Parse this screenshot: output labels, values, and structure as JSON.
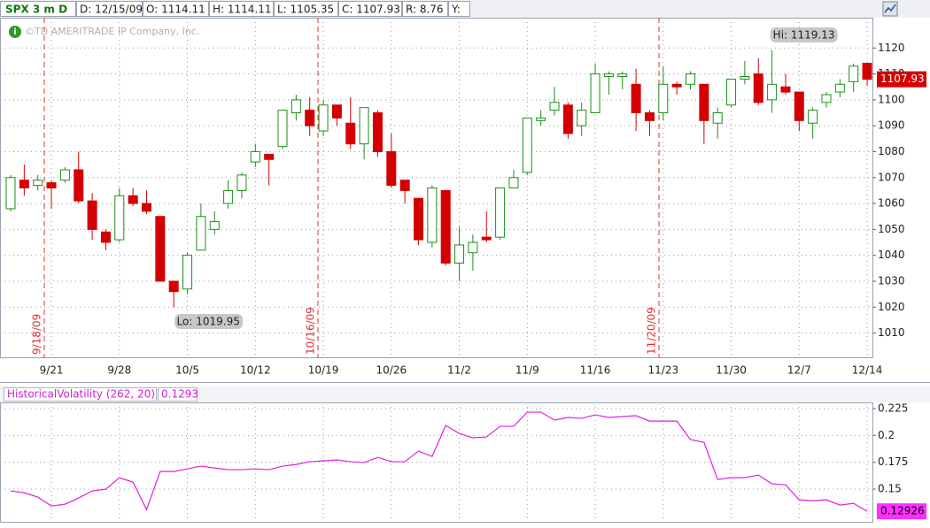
{
  "header": {
    "symbol": "SPX 3 m D",
    "fields": [
      "D: 12/15/09",
      "O: 1114.11",
      "H: 1114.11",
      "L: 1105.35",
      "C: 1107.93",
      "R: 8.76",
      "Y:"
    ],
    "watermark": "©TD AMERITRADE IP Company, Inc."
  },
  "chart_data": [
    {
      "type": "candlestick",
      "categories": [
        null,
        null,
        null,
        "9/21",
        null,
        null,
        null,
        null,
        "9/28",
        null,
        null,
        null,
        null,
        "10/5",
        null,
        null,
        null,
        null,
        "10/12",
        null,
        null,
        null,
        null,
        "10/19",
        null,
        null,
        null,
        null,
        "10/26",
        null,
        null,
        null,
        null,
        "11/2",
        null,
        null,
        null,
        null,
        "11/9",
        null,
        null,
        null,
        null,
        "11/16",
        null,
        null,
        null,
        null,
        "11/23",
        null,
        null,
        null,
        null,
        "11/30",
        null,
        null,
        null,
        null,
        "12/7",
        null,
        null,
        null,
        null,
        "12/14"
      ],
      "open": [
        1058,
        1069,
        1067,
        1068,
        1069,
        1073,
        1061,
        1049,
        1046,
        1063,
        1060,
        1055,
        1030,
        1027,
        1042,
        1050,
        1060,
        1065,
        1076,
        1079,
        1082,
        1095,
        1096,
        1088,
        1098,
        1091,
        1083,
        1095,
        1080,
        1069,
        1062,
        1045,
        1065,
        1037,
        1041,
        1047,
        1047,
        1066,
        1072,
        1092,
        1096,
        1098,
        1090,
        1095,
        1109,
        1109,
        1106,
        1095,
        1095,
        1106,
        1106,
        1106,
        1091,
        1098,
        1108,
        1110,
        1100,
        1105,
        1103,
        1091,
        1099,
        1103,
        1107,
        1114.11
      ],
      "high": [
        1071,
        1075,
        1071,
        1069,
        1074,
        1080,
        1064,
        1050,
        1066,
        1066,
        1065,
        1055,
        1030,
        1041,
        1060,
        1057,
        1069,
        1072,
        1083,
        1079,
        1096,
        1102,
        1101,
        1100,
        1098,
        1101,
        1097,
        1096,
        1087,
        1069,
        1062,
        1067,
        1065,
        1051,
        1048,
        1057,
        1066,
        1073,
        1093,
        1096,
        1105,
        1099,
        1099,
        1114,
        1111,
        1111,
        1112,
        1096,
        1113,
        1107,
        1111,
        1106,
        1097,
        1108,
        1115,
        1116,
        1119.13,
        1110,
        1103,
        1097,
        1103,
        1108,
        1114,
        1114.11
      ],
      "low": [
        1057,
        1063,
        1065,
        1058,
        1068,
        1060,
        1046,
        1042,
        1045,
        1059,
        1056,
        1030,
        1019.95,
        1025,
        1042,
        1048,
        1058,
        1062,
        1074,
        1067,
        1081,
        1092,
        1086,
        1086,
        1090,
        1081,
        1077,
        1078,
        1066,
        1060,
        1044,
        1043,
        1036,
        1030,
        1034,
        1045,
        1046,
        1066,
        1071,
        1090,
        1094,
        1085,
        1086,
        1095,
        1102,
        1104,
        1088,
        1086,
        1092,
        1102,
        1104,
        1083,
        1085,
        1097,
        1106,
        1098,
        1095,
        1102,
        1088,
        1085,
        1097,
        1101,
        1103,
        1105.35
      ],
      "close": [
        1070,
        1066,
        1069,
        1066,
        1073,
        1061,
        1050,
        1045,
        1063,
        1060,
        1057,
        1030,
        1026,
        1040,
        1055,
        1053,
        1065,
        1071,
        1080,
        1077,
        1096,
        1100,
        1090,
        1098,
        1093,
        1083,
        1097,
        1080,
        1067,
        1065,
        1046,
        1066,
        1037,
        1044,
        1045,
        1046,
        1066,
        1070,
        1093,
        1093,
        1099,
        1087,
        1096,
        1110,
        1110,
        1110,
        1095,
        1092,
        1106,
        1105,
        1110,
        1092,
        1095,
        1108,
        1109,
        1099,
        1106,
        1103,
        1092,
        1096,
        1102,
        1106,
        1113,
        1107.93
      ],
      "colors": {
        "up": "#1a8f1a",
        "down": "#d40000"
      },
      "ylim": [
        1000.3,
        1131.7
      ],
      "yticks": [
        1010,
        1020,
        1030,
        1040,
        1050,
        1060,
        1070,
        1080,
        1090,
        1100,
        1110,
        1120
      ],
      "grid": true,
      "annotations": {
        "high": "Hi: 1119.13",
        "low": "Lo: 1019.95",
        "last": "1107.93"
      },
      "events": [
        "9/18/09",
        "10/16/09",
        "11/20/09"
      ]
    },
    {
      "type": "line",
      "title": "HistoricalVolatility (262, 20)",
      "current": "0.1293",
      "color": "#e020e0",
      "values": [
        0.1483,
        0.1466,
        0.1425,
        0.1342,
        0.1359,
        0.1417,
        0.1483,
        0.1499,
        0.1606,
        0.1565,
        0.1309,
        0.1664,
        0.1664,
        0.1689,
        0.1714,
        0.1697,
        0.1681,
        0.1681,
        0.1689,
        0.1681,
        0.1714,
        0.173,
        0.1755,
        0.1763,
        0.1772,
        0.1755,
        0.1747,
        0.1796,
        0.1755,
        0.1755,
        0.1854,
        0.1804,
        0.2093,
        0.2019,
        0.1978,
        0.1986,
        0.2085,
        0.2085,
        0.2217,
        0.2217,
        0.2143,
        0.2168,
        0.2159,
        0.2192,
        0.2168,
        0.2176,
        0.2184,
        0.2134,
        0.2134,
        0.2134,
        0.1961,
        0.1936,
        0.159,
        0.1606,
        0.1606,
        0.1631,
        0.1549,
        0.154,
        0.14,
        0.1392,
        0.14,
        0.1351,
        0.1367,
        0.1293
      ],
      "ylim": [
        0.1195,
        0.2308
      ],
      "yticks": [
        0.15,
        0.175,
        0.2,
        0.225
      ],
      "grid": true,
      "last_label": "0.12926"
    }
  ]
}
